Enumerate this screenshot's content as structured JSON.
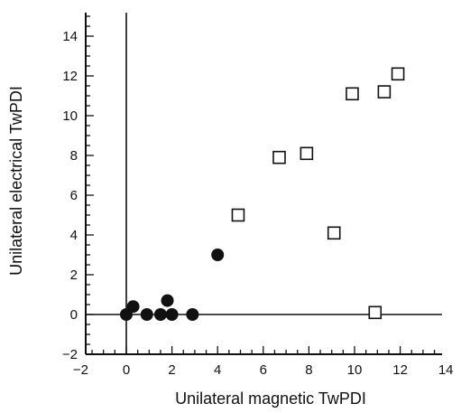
{
  "chart_data": {
    "type": "scatter",
    "title": "",
    "xlabel": "Unilateral magnetic TwPDI",
    "ylabel": "Unilateral electrical TwPDI",
    "xlim": [
      -2,
      15
    ],
    "ylim": [
      -2,
      15
    ],
    "x_ticks": [
      -2,
      0,
      2,
      4,
      6,
      8,
      10,
      12,
      14
    ],
    "y_ticks": [
      -2,
      0,
      2,
      4,
      6,
      8,
      10,
      12,
      14
    ],
    "grid": false,
    "legend": "none",
    "series": [
      {
        "marker": "filled-circle",
        "color": "#111111",
        "points": [
          {
            "x": 0.0,
            "y": 0.0
          },
          {
            "x": 0.3,
            "y": 0.4
          },
          {
            "x": 0.9,
            "y": 0.0
          },
          {
            "x": 1.5,
            "y": 0.0
          },
          {
            "x": 1.8,
            "y": 0.7
          },
          {
            "x": 2.0,
            "y": 0.0
          },
          {
            "x": 2.9,
            "y": 0.0
          },
          {
            "x": 4.0,
            "y": 3.0
          }
        ]
      },
      {
        "marker": "open-square",
        "color": "#111111",
        "points": [
          {
            "x": 4.9,
            "y": 5.0
          },
          {
            "x": 6.7,
            "y": 7.9
          },
          {
            "x": 7.9,
            "y": 8.1
          },
          {
            "x": 9.1,
            "y": 4.1
          },
          {
            "x": 9.9,
            "y": 11.1
          },
          {
            "x": 11.3,
            "y": 11.2
          },
          {
            "x": 11.9,
            "y": 12.1
          },
          {
            "x": 10.9,
            "y": 0.1
          }
        ]
      }
    ]
  }
}
